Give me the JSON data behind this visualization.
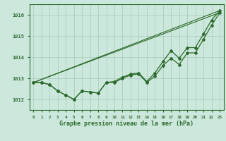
{
  "bg_color": "#cce8dc",
  "grid_color": "#aacfbf",
  "line_color": "#2d6a2d",
  "title": "Graphe pression niveau de la mer (hPa)",
  "ylim": [
    1011.5,
    1016.5
  ],
  "xlim": [
    -0.5,
    23.5
  ],
  "yticks": [
    1012,
    1013,
    1014,
    1015,
    1016
  ],
  "xticks": [
    0,
    1,
    2,
    3,
    4,
    5,
    6,
    7,
    8,
    9,
    10,
    11,
    12,
    13,
    14,
    15,
    16,
    17,
    18,
    19,
    20,
    21,
    22,
    23
  ],
  "series1_x": [
    0,
    1,
    2,
    3,
    4,
    5,
    6,
    7,
    8,
    9,
    10,
    11,
    12,
    13,
    14,
    15,
    16,
    17,
    18,
    19,
    20,
    21,
    22,
    23
  ],
  "series1_y": [
    1012.8,
    1012.8,
    1012.7,
    1012.4,
    1012.2,
    1012.0,
    1012.4,
    1012.35,
    1012.3,
    1012.8,
    1012.85,
    1013.05,
    1013.2,
    1013.25,
    1012.85,
    1013.25,
    1013.8,
    1014.3,
    1013.95,
    1014.45,
    1014.45,
    1015.1,
    1015.75,
    1016.2
  ],
  "series2_x": [
    0,
    1,
    2,
    3,
    4,
    5,
    6,
    7,
    8,
    9,
    10,
    11,
    12,
    13,
    14,
    15,
    16,
    17,
    18,
    19,
    20,
    21,
    22,
    23
  ],
  "series2_y": [
    1012.8,
    1012.8,
    1012.7,
    1012.4,
    1012.2,
    1012.0,
    1012.4,
    1012.35,
    1012.3,
    1012.8,
    1012.8,
    1013.0,
    1013.15,
    1013.2,
    1012.8,
    1013.1,
    1013.6,
    1013.95,
    1013.65,
    1014.2,
    1014.2,
    1014.85,
    1015.5,
    1016.1
  ],
  "series3_x": [
    0,
    23
  ],
  "series3_y": [
    1012.8,
    1016.2
  ],
  "series4_x": [
    0,
    23
  ],
  "series4_y": [
    1012.8,
    1016.1
  ]
}
